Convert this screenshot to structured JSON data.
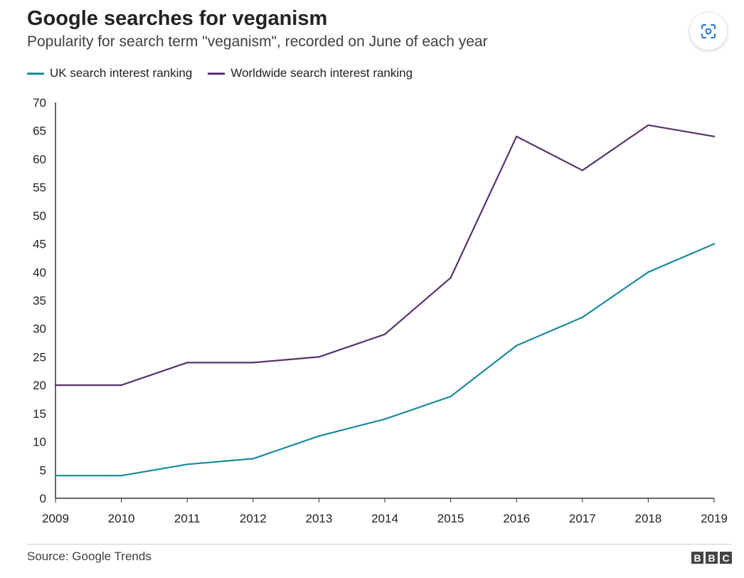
{
  "chart_data": {
    "type": "line",
    "title": "Google searches for veganism",
    "subtitle": "Popularity for search term \"veganism\", recorded on June of each year",
    "x": [
      "2009",
      "2010",
      "2011",
      "2012",
      "2013",
      "2014",
      "2015",
      "2016",
      "2017",
      "2018",
      "2019"
    ],
    "yticks": [
      "0",
      "5",
      "10",
      "15",
      "20",
      "25",
      "30",
      "35",
      "40",
      "45",
      "50",
      "55",
      "60",
      "65",
      "70"
    ],
    "ylim": [
      0,
      70
    ],
    "xlabel": "",
    "ylabel": "",
    "grid": false,
    "legend_position": "top-left",
    "series": [
      {
        "name": "UK search interest ranking",
        "color": "#1a8aa0",
        "values": [
          4,
          4,
          6,
          7,
          11,
          14,
          18,
          27,
          32,
          40,
          45
        ]
      },
      {
        "name": "Worldwide search interest ranking",
        "color": "#58336e",
        "values": [
          20,
          20,
          24,
          24,
          25,
          29,
          39,
          64,
          58,
          66,
          64
        ]
      }
    ]
  },
  "source": "Source: Google Trends",
  "logo": {
    "letters": [
      "B",
      "B",
      "C"
    ]
  },
  "icons": {
    "lens": "google-lens-icon"
  },
  "colors": {
    "text": "#222222",
    "axis": "#333333",
    "background": "#ffffff"
  }
}
